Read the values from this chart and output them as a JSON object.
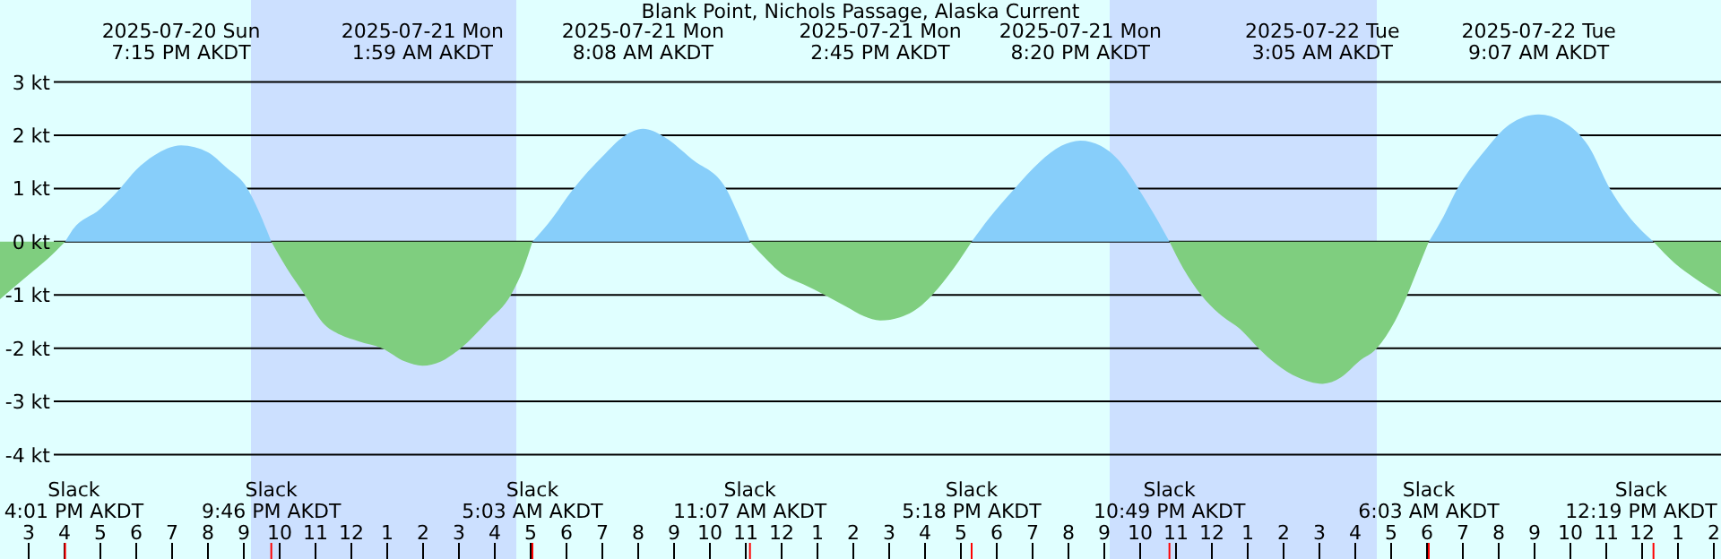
{
  "chart_data": {
    "type": "area",
    "title": "Blank Point, Nichols Passage, Alaska Current",
    "xlim": [
      "2025-07-20T14:12",
      "2025-07-22T14:12"
    ],
    "xticks": [
      {
        "value": "2025-07-20T15:00",
        "label": "3"
      },
      {
        "value": "2025-07-20T16:00",
        "label": "4"
      },
      {
        "value": "2025-07-20T17:00",
        "label": "5"
      },
      {
        "value": "2025-07-20T18:00",
        "label": "6"
      },
      {
        "value": "2025-07-20T19:00",
        "label": "7"
      },
      {
        "value": "2025-07-20T20:00",
        "label": "8"
      },
      {
        "value": "2025-07-20T21:00",
        "label": "9"
      },
      {
        "value": "2025-07-20T22:00",
        "label": "10"
      },
      {
        "value": "2025-07-20T23:00",
        "label": "11"
      },
      {
        "value": "2025-07-21T00:00",
        "label": "12"
      },
      {
        "value": "2025-07-21T01:00",
        "label": "1"
      },
      {
        "value": "2025-07-21T02:00",
        "label": "2"
      },
      {
        "value": "2025-07-21T03:00",
        "label": "3"
      },
      {
        "value": "2025-07-21T04:00",
        "label": "4"
      },
      {
        "value": "2025-07-21T05:00",
        "label": "5"
      },
      {
        "value": "2025-07-21T06:00",
        "label": "6"
      },
      {
        "value": "2025-07-21T07:00",
        "label": "7"
      },
      {
        "value": "2025-07-21T08:00",
        "label": "8"
      },
      {
        "value": "2025-07-21T09:00",
        "label": "9"
      },
      {
        "value": "2025-07-21T10:00",
        "label": "10"
      },
      {
        "value": "2025-07-21T11:00",
        "label": "11"
      },
      {
        "value": "2025-07-21T12:00",
        "label": "12"
      },
      {
        "value": "2025-07-21T13:00",
        "label": "1"
      },
      {
        "value": "2025-07-21T14:00",
        "label": "2"
      },
      {
        "value": "2025-07-21T15:00",
        "label": "3"
      },
      {
        "value": "2025-07-21T16:00",
        "label": "4"
      },
      {
        "value": "2025-07-21T17:00",
        "label": "5"
      },
      {
        "value": "2025-07-21T18:00",
        "label": "6"
      },
      {
        "value": "2025-07-21T19:00",
        "label": "7"
      },
      {
        "value": "2025-07-21T20:00",
        "label": "8"
      },
      {
        "value": "2025-07-21T21:00",
        "label": "9"
      },
      {
        "value": "2025-07-21T22:00",
        "label": "10"
      },
      {
        "value": "2025-07-21T23:00",
        "label": "11"
      },
      {
        "value": "2025-07-22T00:00",
        "label": "12"
      },
      {
        "value": "2025-07-22T01:00",
        "label": "1"
      },
      {
        "value": "2025-07-22T02:00",
        "label": "2"
      },
      {
        "value": "2025-07-22T03:00",
        "label": "3"
      },
      {
        "value": "2025-07-22T04:00",
        "label": "4"
      },
      {
        "value": "2025-07-22T05:00",
        "label": "5"
      },
      {
        "value": "2025-07-22T06:00",
        "label": "6"
      },
      {
        "value": "2025-07-22T07:00",
        "label": "7"
      },
      {
        "value": "2025-07-22T08:00",
        "label": "8"
      },
      {
        "value": "2025-07-22T09:00",
        "label": "9"
      },
      {
        "value": "2025-07-22T10:00",
        "label": "10"
      },
      {
        "value": "2025-07-22T11:00",
        "label": "11"
      },
      {
        "value": "2025-07-22T12:00",
        "label": "12"
      },
      {
        "value": "2025-07-22T13:00",
        "label": "1"
      },
      {
        "value": "2025-07-22T14:00",
        "label": "2"
      }
    ],
    "ylim": [
      -5.96,
      4.54
    ],
    "yticks": [
      {
        "value": 3,
        "label": "3 kt"
      },
      {
        "value": 2,
        "label": "2 kt"
      },
      {
        "value": 1,
        "label": "1 kt"
      },
      {
        "value": 0,
        "label": "0 kt"
      },
      {
        "value": -1,
        "label": "-1 kt"
      },
      {
        "value": -2,
        "label": "-2 kt"
      },
      {
        "value": -3,
        "label": "-3 kt"
      },
      {
        "value": -4,
        "label": "-4 kt"
      }
    ],
    "grid": "y",
    "bands": [
      {
        "axis": "x",
        "from": "2025-07-20T21:12",
        "to": "2025-07-21T04:36",
        "color": "#cce0ff"
      },
      {
        "axis": "x",
        "from": "2025-07-21T21:09",
        "to": "2025-07-22T04:36",
        "color": "#cce0ff"
      }
    ],
    "series": [
      {
        "color": "#7fce7f",
        "x": [
          "2025-07-20T14:12",
          "2025-07-20T15:00",
          "2025-07-20T15:30",
          "2025-07-20T16:01"
        ],
        "values": [
          -1.08,
          -0.62,
          -0.34,
          0
        ]
      },
      {
        "color": "#87cefa",
        "x": [
          "2025-07-20T16:01",
          "2025-07-20T16:12",
          "2025-07-20T17:00",
          "2025-07-20T17:33",
          "2025-07-20T18:00",
          "2025-07-20T18:30",
          "2025-07-20T19:15",
          "2025-07-20T20:00",
          "2025-07-20T20:30",
          "2025-07-20T21:06",
          "2025-07-20T21:24",
          "2025-07-20T21:46"
        ],
        "values": [
          0,
          0.2,
          0.62,
          1.0,
          1.35,
          1.62,
          1.81,
          1.68,
          1.4,
          1.0,
          0.6,
          0
        ]
      },
      {
        "color": "#7fce7f",
        "x": [
          "2025-07-20T21:46",
          "2025-07-20T22:12",
          "2025-07-20T22:42",
          "2025-07-20T23:12",
          "2025-07-20T23:42",
          "2025-07-21T00:12",
          "2025-07-21T00:51",
          "2025-07-21T01:30",
          "2025-07-21T01:59",
          "2025-07-21T02:30",
          "2025-07-21T03:03",
          "2025-07-21T03:48",
          "2025-07-21T04:27",
          "2025-07-21T04:48",
          "2025-07-21T05:03"
        ],
        "values": [
          0,
          -0.5,
          -1.0,
          -1.52,
          -1.75,
          -1.87,
          -2.0,
          -2.25,
          -2.33,
          -2.25,
          -2.0,
          -1.5,
          -1.0,
          -0.5,
          0
        ]
      },
      {
        "color": "#87cefa",
        "x": [
          "2025-07-21T05:03",
          "2025-07-21T05:30",
          "2025-07-21T06:12",
          "2025-07-21T07:00",
          "2025-07-21T07:36",
          "2025-07-21T08:08",
          "2025-07-21T08:42",
          "2025-07-21T09:30",
          "2025-07-21T10:27",
          "2025-07-21T10:48",
          "2025-07-21T11:07"
        ],
        "values": [
          0,
          0.35,
          1.0,
          1.6,
          1.98,
          2.12,
          1.98,
          1.55,
          1.0,
          0.5,
          0
        ]
      },
      {
        "color": "#7fce7f",
        "x": [
          "2025-07-21T11:07",
          "2025-07-21T11:36",
          "2025-07-21T12:00",
          "2025-07-21T12:36",
          "2025-07-21T13:12",
          "2025-07-21T13:48",
          "2025-07-21T14:18",
          "2025-07-21T14:45",
          "2025-07-21T15:18",
          "2025-07-21T15:48",
          "2025-07-21T16:12",
          "2025-07-21T16:48",
          "2025-07-21T17:18"
        ],
        "values": [
          0,
          -0.35,
          -0.6,
          -0.8,
          -1.0,
          -1.22,
          -1.4,
          -1.48,
          -1.42,
          -1.25,
          -1.0,
          -0.5,
          0
        ]
      },
      {
        "color": "#87cefa",
        "x": [
          "2025-07-21T17:18",
          "2025-07-21T17:48",
          "2025-07-21T18:30",
          "2025-07-21T19:12",
          "2025-07-21T19:48",
          "2025-07-21T20:20",
          "2025-07-21T20:54",
          "2025-07-21T21:30",
          "2025-07-21T21:57",
          "2025-07-21T22:24",
          "2025-07-21T22:49"
        ],
        "values": [
          0,
          0.45,
          1.0,
          1.5,
          1.8,
          1.9,
          1.8,
          1.45,
          1.0,
          0.5,
          0
        ]
      },
      {
        "color": "#7fce7f",
        "x": [
          "2025-07-21T22:49",
          "2025-07-21T23:12",
          "2025-07-21T23:42",
          "2025-07-22T00:12",
          "2025-07-22T00:48",
          "2025-07-22T01:18",
          "2025-07-22T01:48",
          "2025-07-22T02:24",
          "2025-07-22T03:05",
          "2025-07-22T03:36",
          "2025-07-22T04:06",
          "2025-07-22T04:36",
          "2025-07-22T05:06",
          "2025-07-22T05:27",
          "2025-07-22T05:45",
          "2025-07-22T06:03"
        ],
        "values": [
          0,
          -0.5,
          -1.0,
          -1.35,
          -1.65,
          -2.0,
          -2.3,
          -2.55,
          -2.67,
          -2.55,
          -2.25,
          -2.0,
          -1.5,
          -1.0,
          -0.5,
          0
        ]
      },
      {
        "color": "#87cefa",
        "x": [
          "2025-07-22T06:03",
          "2025-07-22T06:24",
          "2025-07-22T06:51",
          "2025-07-22T07:36",
          "2025-07-22T08:18",
          "2025-07-22T09:07",
          "2025-07-22T09:48",
          "2025-07-22T10:30",
          "2025-07-22T11:06",
          "2025-07-22T11:36",
          "2025-07-22T12:19"
        ],
        "values": [
          0,
          0.4,
          1.0,
          1.7,
          2.2,
          2.39,
          2.25,
          1.8,
          1.0,
          0.5,
          0
        ]
      },
      {
        "color": "#7fce7f",
        "x": [
          "2025-07-22T12:19",
          "2025-07-22T12:54",
          "2025-07-22T13:30",
          "2025-07-22T14:12"
        ],
        "values": [
          0,
          -0.4,
          -0.7,
          -1.0
        ]
      }
    ],
    "annotations": [
      "2025-07-20 Sun\n7:15 PM AKDT",
      "2025-07-21 Mon\n1:59 AM AKDT",
      "2025-07-21 Mon\n8:08 AM AKDT",
      "2025-07-21 Mon\n2:45 PM AKDT",
      "2025-07-21 Mon\n8:20 PM AKDT",
      "2025-07-22 Tue\n3:05 AM AKDT",
      "2025-07-22 Tue\n9:07 AM AKDT",
      "Slack\n4:01 PM AKDT",
      "Slack\n9:46 PM AKDT",
      "Slack\n5:03 AM AKDT",
      "Slack\n11:07 AM AKDT",
      "Slack\n5:18 PM AKDT",
      "Slack\n10:49 PM AKDT",
      "Slack\n6:03 AM AKDT",
      "Slack\n12:19 PM AKDT"
    ]
  }
}
